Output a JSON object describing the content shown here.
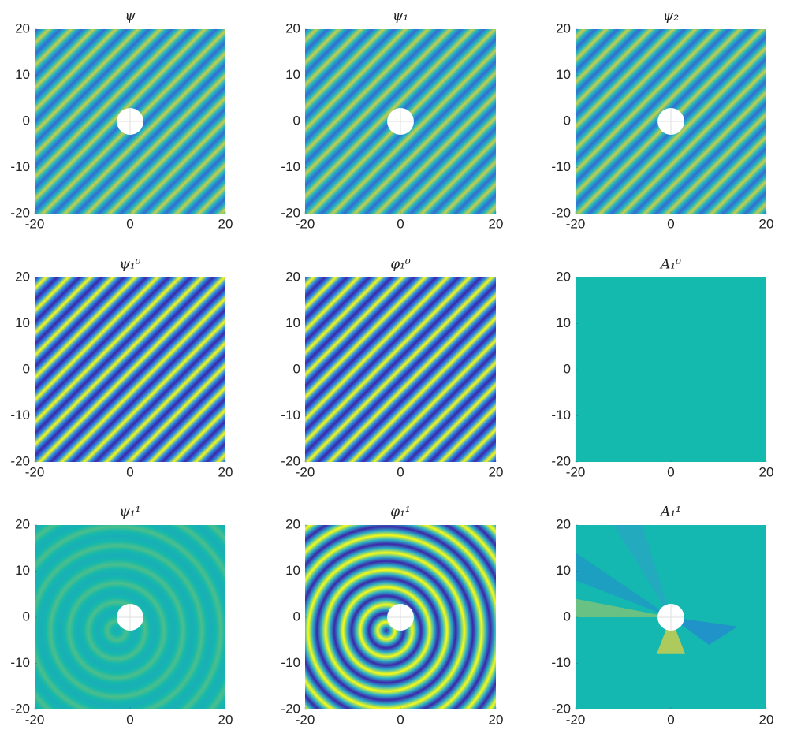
{
  "chart_data": [
    {
      "type": "image",
      "title": "ψ",
      "xlim": [
        -20,
        20
      ],
      "ylim": [
        -20,
        20
      ],
      "xticks": [
        -20,
        0,
        20
      ],
      "yticks": [
        -20,
        -10,
        0,
        10,
        20
      ]
    },
    {
      "type": "image",
      "title": "ψ₁",
      "xlim": [
        -20,
        20
      ],
      "ylim": [
        -20,
        20
      ],
      "xticks": [
        -20,
        0,
        20
      ],
      "yticks": [
        -20,
        -10,
        0,
        10,
        20
      ]
    },
    {
      "type": "image",
      "title": "ψ₂",
      "xlim": [
        -20,
        20
      ],
      "ylim": [
        -20,
        20
      ],
      "xticks": [
        -20,
        0,
        20
      ],
      "yticks": [
        -20,
        -10,
        0,
        10,
        20
      ]
    },
    {
      "type": "image",
      "title": "ψ₁⁰",
      "xlim": [
        -20,
        20
      ],
      "ylim": [
        -20,
        20
      ],
      "xticks": [
        -20,
        0,
        20
      ],
      "yticks": [
        -20,
        -10,
        0,
        10,
        20
      ]
    },
    {
      "type": "image",
      "title": "φ₁⁰",
      "xlim": [
        -20,
        20
      ],
      "ylim": [
        -20,
        20
      ],
      "xticks": [
        -20,
        0,
        20
      ],
      "yticks": [
        -20,
        -10,
        0,
        10,
        20
      ]
    },
    {
      "type": "image",
      "title": "A₁⁰",
      "xlim": [
        -20,
        20
      ],
      "ylim": [
        -20,
        20
      ],
      "xticks": [
        -20,
        0,
        20
      ],
      "yticks": [
        -20,
        -10,
        0,
        10,
        20
      ]
    },
    {
      "type": "image",
      "title": "ψ₁¹",
      "xlim": [
        -20,
        20
      ],
      "ylim": [
        -20,
        20
      ],
      "xticks": [
        -20,
        0,
        20
      ],
      "yticks": [
        -20,
        -10,
        0,
        10,
        20
      ]
    },
    {
      "type": "image",
      "title": "φ₁¹",
      "xlim": [
        -20,
        20
      ],
      "ylim": [
        -20,
        20
      ],
      "xticks": [
        -20,
        0,
        20
      ],
      "yticks": [
        -20,
        -10,
        0,
        10,
        20
      ]
    },
    {
      "type": "image",
      "title": "A₁¹",
      "xlim": [
        -20,
        20
      ],
      "ylim": [
        -20,
        20
      ],
      "xticks": [
        -20,
        0,
        20
      ],
      "yticks": [
        -20,
        -10,
        0,
        10,
        20
      ]
    }
  ]
}
